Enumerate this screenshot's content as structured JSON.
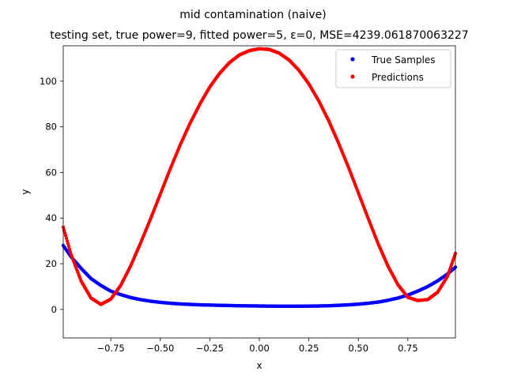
{
  "chart_data": {
    "type": "scatter",
    "suptitle": "mid contamination (naive)",
    "title": "testing set, true power=9, fitted power=5, ε=0, MSE=4239.061870063227",
    "xlabel": "x",
    "ylabel": "y",
    "xlim": [
      -0.99,
      0.99
    ],
    "ylim": [
      -12.5,
      115.5
    ],
    "xticks": [
      -0.75,
      -0.5,
      -0.25,
      0.0,
      0.25,
      0.5,
      0.75
    ],
    "xtick_labels": [
      "−0.75",
      "−0.50",
      "−0.25",
      "0.00",
      "0.25",
      "0.50",
      "0.75"
    ],
    "yticks": [
      0,
      20,
      40,
      60,
      80,
      100
    ],
    "ytick_labels": [
      "0",
      "20",
      "40",
      "60",
      "80",
      "100"
    ],
    "grid": false,
    "legend_position": "top-right",
    "series": [
      {
        "name": "True Samples",
        "color": "#0000ff",
        "points": [
          [
            -0.99,
            28.0
          ],
          [
            -0.95,
            23.0
          ],
          [
            -0.9,
            18.0
          ],
          [
            -0.85,
            13.5
          ],
          [
            -0.8,
            10.5
          ],
          [
            -0.75,
            8.0
          ],
          [
            -0.7,
            6.5
          ],
          [
            -0.65,
            5.2
          ],
          [
            -0.6,
            4.3
          ],
          [
            -0.55,
            3.6
          ],
          [
            -0.5,
            3.1
          ],
          [
            -0.45,
            2.7
          ],
          [
            -0.4,
            2.4
          ],
          [
            -0.35,
            2.2
          ],
          [
            -0.3,
            2.0
          ],
          [
            -0.25,
            1.9
          ],
          [
            -0.2,
            1.8
          ],
          [
            -0.15,
            1.7
          ],
          [
            -0.1,
            1.6
          ],
          [
            -0.05,
            1.55
          ],
          [
            0.0,
            1.5
          ],
          [
            0.05,
            1.45
          ],
          [
            0.1,
            1.4
          ],
          [
            0.15,
            1.4
          ],
          [
            0.2,
            1.4
          ],
          [
            0.25,
            1.45
          ],
          [
            0.3,
            1.5
          ],
          [
            0.35,
            1.6
          ],
          [
            0.4,
            1.8
          ],
          [
            0.45,
            2.0
          ],
          [
            0.5,
            2.3
          ],
          [
            0.55,
            2.7
          ],
          [
            0.6,
            3.2
          ],
          [
            0.65,
            4.0
          ],
          [
            0.7,
            5.0
          ],
          [
            0.75,
            6.3
          ],
          [
            0.8,
            8.0
          ],
          [
            0.85,
            10.0
          ],
          [
            0.9,
            12.5
          ],
          [
            0.95,
            15.5
          ],
          [
            0.99,
            18.5
          ]
        ]
      },
      {
        "name": "Predictions",
        "color": "#ff0000",
        "points": [
          [
            -0.99,
            36.0
          ],
          [
            -0.95,
            24.0
          ],
          [
            -0.9,
            12.5
          ],
          [
            -0.85,
            5.0
          ],
          [
            -0.8,
            2.2
          ],
          [
            -0.75,
            4.5
          ],
          [
            -0.7,
            10.5
          ],
          [
            -0.65,
            19.0
          ],
          [
            -0.6,
            29.0
          ],
          [
            -0.55,
            39.5
          ],
          [
            -0.5,
            50.5
          ],
          [
            -0.45,
            61.5
          ],
          [
            -0.4,
            72.0
          ],
          [
            -0.35,
            81.5
          ],
          [
            -0.3,
            90.0
          ],
          [
            -0.25,
            97.5
          ],
          [
            -0.2,
            103.5
          ],
          [
            -0.15,
            108.2
          ],
          [
            -0.1,
            111.5
          ],
          [
            -0.05,
            113.4
          ],
          [
            0.0,
            114.2
          ],
          [
            0.05,
            113.9
          ],
          [
            0.1,
            112.3
          ],
          [
            0.15,
            109.3
          ],
          [
            0.2,
            104.8
          ],
          [
            0.25,
            98.8
          ],
          [
            0.3,
            91.4
          ],
          [
            0.35,
            82.7
          ],
          [
            0.4,
            72.9
          ],
          [
            0.45,
            62.3
          ],
          [
            0.5,
            51.1
          ],
          [
            0.55,
            39.8
          ],
          [
            0.6,
            28.8
          ],
          [
            0.65,
            18.9
          ],
          [
            0.7,
            10.8
          ],
          [
            0.75,
            5.3
          ],
          [
            0.8,
            3.9
          ],
          [
            0.85,
            4.3
          ],
          [
            0.9,
            7.5
          ],
          [
            0.95,
            14.5
          ],
          [
            0.99,
            24.5
          ]
        ]
      }
    ]
  }
}
